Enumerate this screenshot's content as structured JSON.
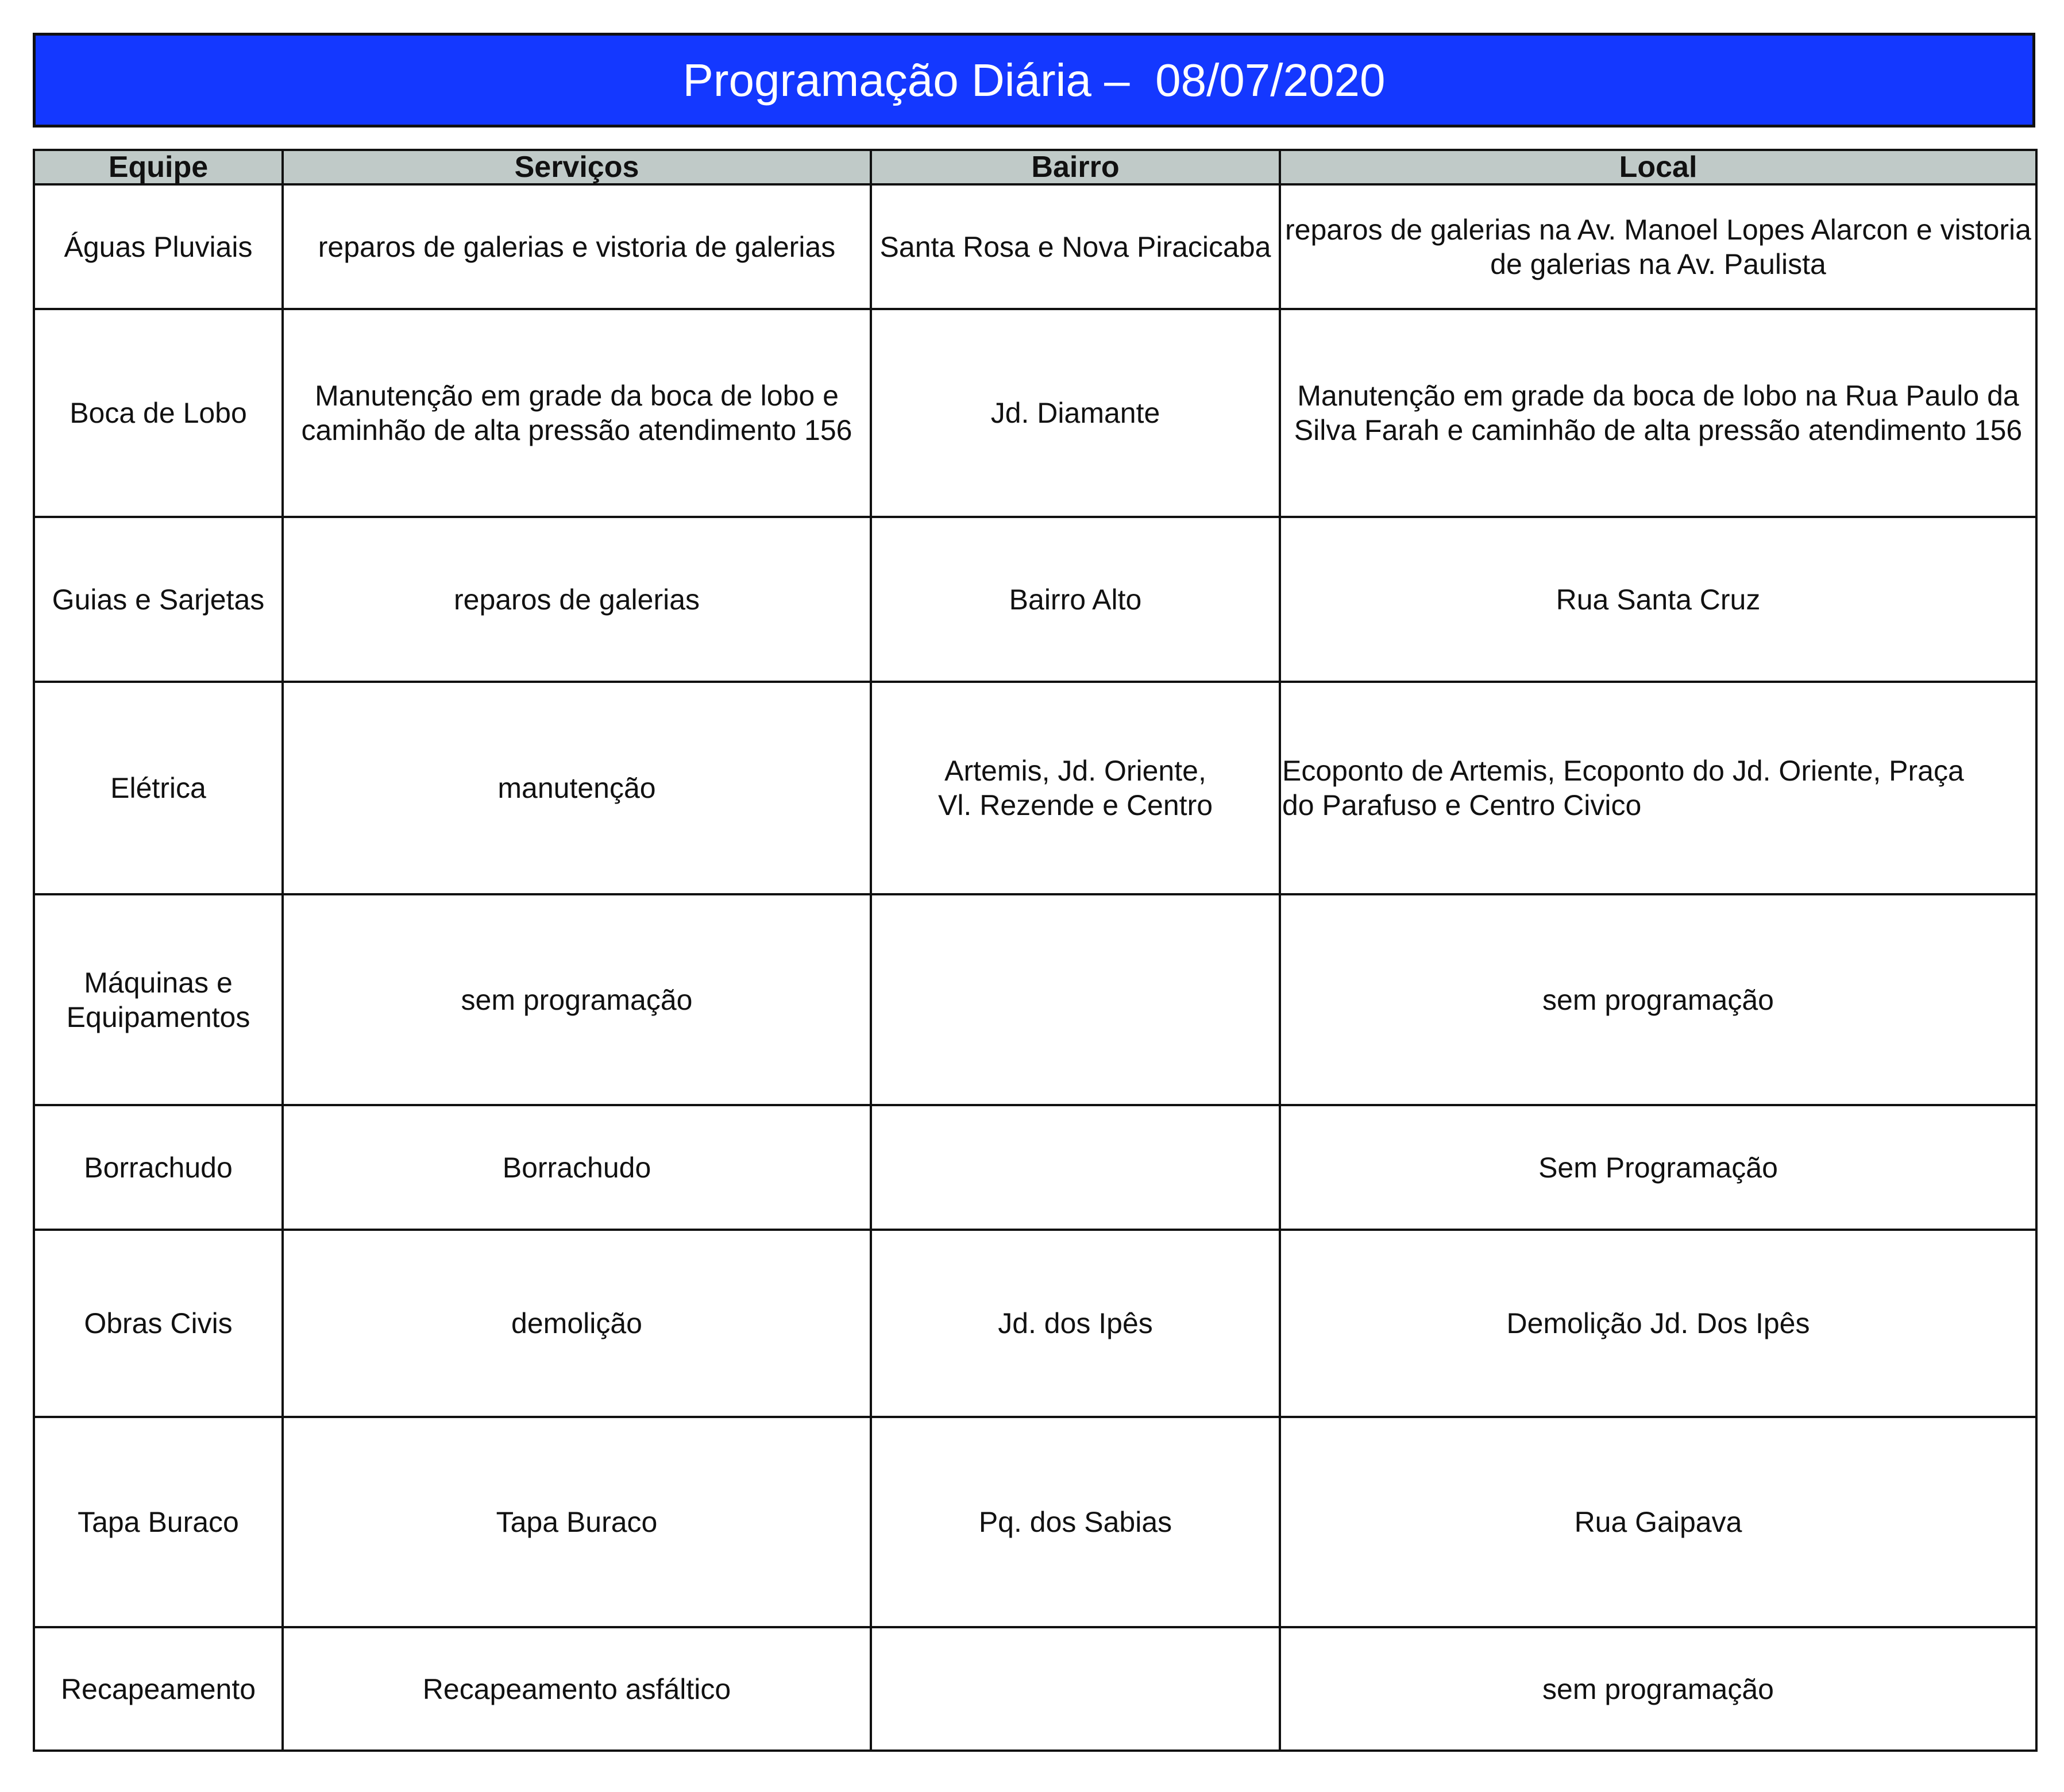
{
  "title": "Programação Diária –  08/07/2020",
  "colors": {
    "title_bg": "#1438ff",
    "header_bg": "#c0cac8"
  },
  "columns": [
    "Equipe",
    "Serviços",
    "Bairro",
    "Local"
  ],
  "rows": [
    {
      "equipe": "Águas Pluviais",
      "servicos": "reparos de galerias e vistoria de galerias",
      "bairro": "Santa Rosa e Nova Piracicaba",
      "local": "reparos de galerias na Av. Manoel Lopes Alarcon e vistoria\nde galerias na Av. Paulista"
    },
    {
      "equipe": "Boca de Lobo",
      "servicos": "Manutenção em grade da boca de lobo e\ncaminhão de alta pressão atendimento 156",
      "bairro": "Jd. Diamante",
      "local": "Manutenção em grade da boca de lobo na Rua Paulo da\nSilva Farah e caminhão de alta pressão atendimento 156"
    },
    {
      "equipe": "Guias e Sarjetas",
      "servicos": "reparos de galerias",
      "bairro": "Bairro Alto",
      "local": "Rua Santa Cruz"
    },
    {
      "equipe": "Elétrica",
      "servicos": "manutenção",
      "bairro": "Artemis,  Jd. Oriente,\nVl. Rezende e Centro",
      "local": "Ecoponto de Artemis, Ecoponto do Jd. Oriente, Praça\ndo Parafuso e Centro Civico"
    },
    {
      "equipe": "Máquinas e\nEquipamentos",
      "servicos": "sem programação",
      "bairro": "",
      "local": "sem programação"
    },
    {
      "equipe": "Borrachudo",
      "servicos": "Borrachudo",
      "bairro": "",
      "local": "Sem Programação"
    },
    {
      "equipe": "Obras Civis",
      "servicos": "demolição",
      "bairro": "Jd. dos Ipês",
      "local": "Demolição Jd. Dos Ipês"
    },
    {
      "equipe": "Tapa Buraco",
      "servicos": "Tapa Buraco",
      "bairro": "Pq. dos Sabias",
      "local": "Rua Gaipava"
    },
    {
      "equipe": "Recapeamento",
      "servicos": "Recapeamento asfáltico",
      "bairro": "",
      "local": "sem programação"
    }
  ]
}
